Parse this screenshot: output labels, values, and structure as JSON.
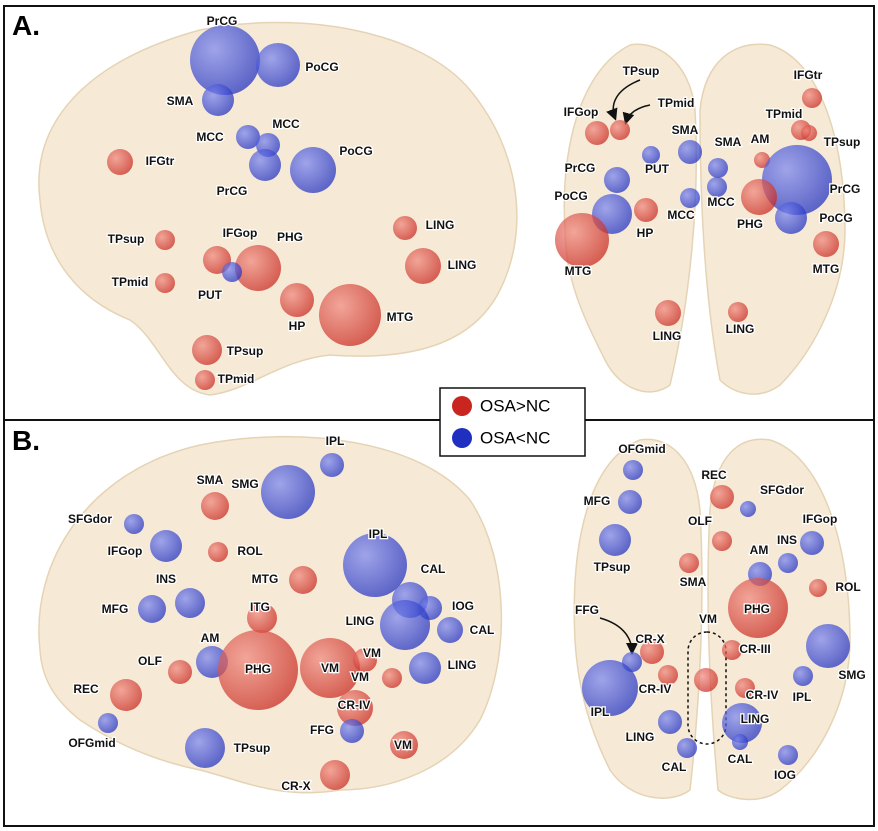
{
  "panels": [
    {
      "label": "A.",
      "nodes": [
        "PrCG",
        "PoCG",
        "SMA",
        "MCC",
        "MCC",
        "PrCG",
        "PoCG",
        "IFGtr",
        "TPsup",
        "IFGop",
        "PHG",
        "PUT",
        "TPmid",
        "HP",
        "MTG",
        "LING",
        "LING",
        "TPsup",
        "TPmid",
        "TPsup",
        "IFGtr",
        "TPmid",
        "TPmid",
        "IFGop",
        "TPsup",
        "SMA",
        "SMA",
        "AM",
        "PUT",
        "PrCG",
        "PrCG",
        "PoCG",
        "HP",
        "MCC",
        "MCC",
        "PHG",
        "PoCG",
        "MTG",
        "MTG",
        "LING",
        "LING"
      ]
    },
    {
      "label": "B.",
      "nodes": [
        "IPL",
        "SMG",
        "SMA",
        "SFGdor",
        "IFGop",
        "ROL",
        "IPL",
        "CAL",
        "INS",
        "MTG",
        "MFG",
        "IOG",
        "CAL",
        "ITG",
        "LING",
        "AM",
        "PHG",
        "OLF",
        "VM",
        "VM",
        "VM",
        "LING",
        "CR-IV",
        "REC",
        "VM",
        "FFG",
        "OFGmid",
        "TPsup",
        "CR-X",
        "OFGmid",
        "REC",
        "SFGdor",
        "MFG",
        "OLF",
        "IFGop",
        "INS",
        "AM",
        "TPsup",
        "SMA",
        "ROL",
        "PHG",
        "FFG",
        "CR-X",
        "VM",
        "CR-III",
        "SMG",
        "IPL",
        "CR-IV",
        "CR-IV",
        "IPL",
        "LING",
        "LING",
        "CAL",
        "CAL",
        "IOG"
      ]
    }
  ],
  "legend": [
    {
      "label": "OSA>NC",
      "color": "#c8261e"
    },
    {
      "label": "OSA<NC",
      "color": "#1f2fc0"
    }
  ]
}
